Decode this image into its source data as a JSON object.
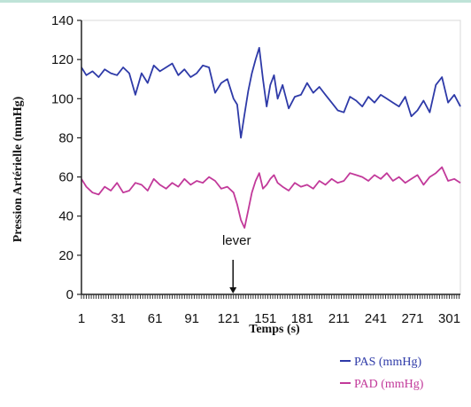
{
  "chart_data": {
    "type": "line",
    "title": "",
    "xlabel": "Temps (s)",
    "ylabel": "Pression Artérielle (mmHg)",
    "xlim": [
      1,
      310
    ],
    "ylim": [
      0,
      140
    ],
    "yticks": [
      0,
      20,
      40,
      60,
      80,
      100,
      120,
      140
    ],
    "xticks": [
      1,
      31,
      61,
      91,
      121,
      151,
      181,
      211,
      241,
      271,
      301
    ],
    "grid": false,
    "legend_position": "bottom-right",
    "annotation": {
      "text": "lever",
      "x": 121,
      "y": 0
    },
    "series": [
      {
        "name": "PAS (mmHg)",
        "color": "#2e3aa8",
        "x": [
          1,
          5,
          10,
          15,
          20,
          25,
          30,
          35,
          40,
          45,
          50,
          55,
          60,
          65,
          70,
          75,
          80,
          85,
          90,
          95,
          100,
          105,
          110,
          115,
          120,
          125,
          128,
          131,
          134,
          137,
          140,
          143,
          146,
          149,
          152,
          155,
          158,
          161,
          165,
          170,
          175,
          180,
          185,
          190,
          195,
          200,
          205,
          210,
          215,
          220,
          225,
          230,
          235,
          240,
          245,
          250,
          255,
          260,
          265,
          270,
          275,
          280,
          285,
          290,
          295,
          300,
          305,
          310
        ],
        "values": [
          116,
          112,
          114,
          111,
          115,
          113,
          112,
          116,
          113,
          102,
          113,
          108,
          117,
          114,
          116,
          118,
          112,
          115,
          111,
          113,
          117,
          116,
          103,
          108,
          110,
          100,
          97,
          80,
          92,
          104,
          113,
          120,
          126,
          110,
          96,
          107,
          112,
          100,
          107,
          95,
          101,
          102,
          108,
          103,
          106,
          102,
          98,
          94,
          93,
          101,
          99,
          96,
          101,
          98,
          102,
          100,
          98,
          96,
          101,
          91,
          94,
          99,
          93,
          107,
          111,
          98,
          102,
          96
        ]
      },
      {
        "name": "PAD (mmHg)",
        "color": "#c2399a",
        "x": [
          1,
          5,
          10,
          15,
          20,
          25,
          30,
          35,
          40,
          45,
          50,
          55,
          60,
          65,
          70,
          75,
          80,
          85,
          90,
          95,
          100,
          105,
          110,
          115,
          120,
          125,
          128,
          131,
          134,
          137,
          140,
          143,
          146,
          149,
          152,
          155,
          158,
          161,
          165,
          170,
          175,
          180,
          185,
          190,
          195,
          200,
          205,
          210,
          215,
          220,
          225,
          230,
          235,
          240,
          245,
          250,
          255,
          260,
          265,
          270,
          275,
          280,
          285,
          290,
          295,
          300,
          305,
          310
        ],
        "values": [
          59,
          55,
          52,
          51,
          55,
          53,
          57,
          52,
          53,
          57,
          56,
          53,
          59,
          56,
          54,
          57,
          55,
          59,
          56,
          58,
          57,
          60,
          58,
          54,
          55,
          52,
          46,
          38,
          34,
          43,
          52,
          58,
          62,
          54,
          56,
          59,
          61,
          57,
          55,
          53,
          57,
          55,
          56,
          54,
          58,
          56,
          59,
          57,
          58,
          62,
          61,
          60,
          58,
          61,
          59,
          62,
          58,
          60,
          57,
          59,
          61,
          56,
          60,
          62,
          65,
          58,
          59,
          57
        ]
      }
    ]
  }
}
